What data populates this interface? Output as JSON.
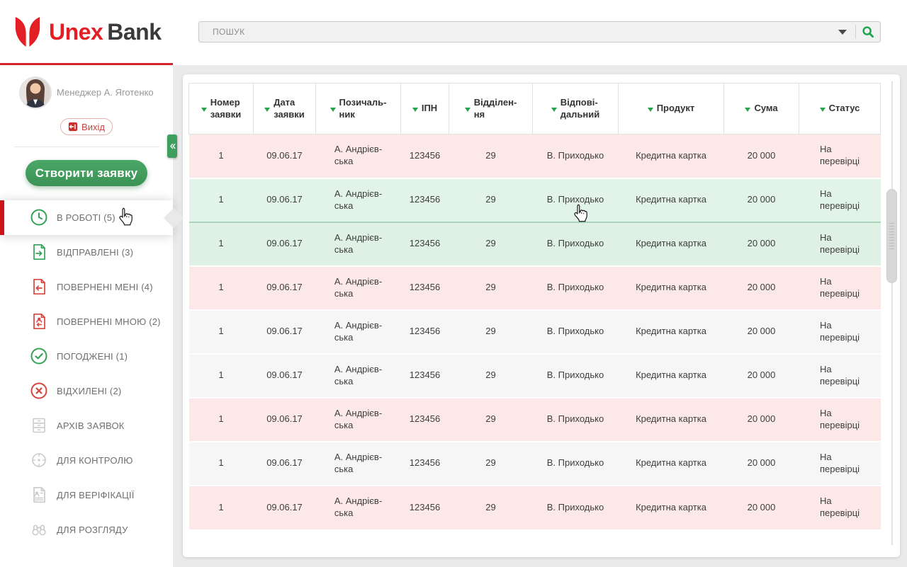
{
  "brand": {
    "name_primary": "Unex",
    "name_secondary": "Bank"
  },
  "search": {
    "placeholder": "ПОШУК"
  },
  "sidebar": {
    "user_name": "Менеджер А. Яготенко",
    "logout_label": "Вихід",
    "create_button_label": "Створити заявку",
    "menu": [
      {
        "key": "in-progress",
        "label": "В РОБОТІ (5)",
        "icon": "clock-icon",
        "tone": "green",
        "active": true
      },
      {
        "key": "sent",
        "label": "ВІДПРАВЛЕНІ (3)",
        "icon": "document-send-icon",
        "tone": "green",
        "active": false
      },
      {
        "key": "returned-to-me",
        "label": "ПОВЕРНЕНІ МЕНІ (4)",
        "icon": "document-return-icon",
        "tone": "red",
        "active": false
      },
      {
        "key": "returned-by-me",
        "label": "ПОВЕРНЕНІ МНОЮ (2)",
        "icon": "document-person-return-icon",
        "tone": "red",
        "active": false
      },
      {
        "key": "approved",
        "label": "ПОГОДЖЕНІ (1)",
        "icon": "check-circle-icon",
        "tone": "green",
        "active": false
      },
      {
        "key": "rejected",
        "label": "ВІДХИЛЕНІ (2)",
        "icon": "cross-circle-icon",
        "tone": "red",
        "active": false
      },
      {
        "key": "archive",
        "label": "АРХІВ ЗАЯВОК",
        "icon": "archive-icon",
        "tone": "gray",
        "active": false
      },
      {
        "key": "for-control",
        "label": "ДЛЯ КОНТРОЛЮ",
        "icon": "target-icon",
        "tone": "gray",
        "active": false
      },
      {
        "key": "for-verification",
        "label": "ДЛЯ ВЕРІФІКАЦІЇ",
        "icon": "document-person-icon",
        "tone": "gray",
        "active": false
      },
      {
        "key": "for-review",
        "label": "ДЛЯ РОЗГЛЯДУ",
        "icon": "binoculars-icon",
        "tone": "gray",
        "active": false
      }
    ]
  },
  "table": {
    "columns": [
      {
        "key": "application-number",
        "label": "Номер\nзаявки"
      },
      {
        "key": "application-date",
        "label": "Дата\nзаявки"
      },
      {
        "key": "borrower",
        "label": "Позичаль-\nник"
      },
      {
        "key": "ipn",
        "label": "ІПН"
      },
      {
        "key": "branch",
        "label": "Відділен-\nня"
      },
      {
        "key": "responsible",
        "label": "Відпові-\nдальний"
      },
      {
        "key": "product",
        "label": "Продукт"
      },
      {
        "key": "amount",
        "label": "Сума"
      },
      {
        "key": "status",
        "label": "Статус"
      }
    ],
    "rows": [
      {
        "tint": "pink",
        "cells": [
          "1",
          "09.06.17",
          "А. Андрієв-\nська",
          "123456",
          "29",
          "В. Приходько",
          "Кредитна картка",
          "20 000",
          "На\nперевірці"
        ]
      },
      {
        "tint": "green",
        "cells": [
          "1",
          "09.06.17",
          "А. Андрієв-\nська",
          "123456",
          "29",
          "В. Приходько",
          "Кредитна картка",
          "20 000",
          "На\nперевірці"
        ]
      },
      {
        "tint": "green-selected",
        "cells": [
          "1",
          "09.06.17",
          "А. Андрієв-\nська",
          "123456",
          "29",
          "В. Приходько",
          "Кредитна картка",
          "20 000",
          "На\nперевірці"
        ]
      },
      {
        "tint": "pink",
        "cells": [
          "1",
          "09.06.17",
          "А. Андрієв-\nська",
          "123456",
          "29",
          "В. Приходько",
          "Кредитна картка",
          "20 000",
          "На\nперевірці"
        ]
      },
      {
        "tint": "gray",
        "cells": [
          "1",
          "09.06.17",
          "А. Андрієв-\nська",
          "123456",
          "29",
          "В. Приходько",
          "Кредитна картка",
          "20 000",
          "На\nперевірці"
        ]
      },
      {
        "tint": "gray",
        "cells": [
          "1",
          "09.06.17",
          "А. Андрієв-\nська",
          "123456",
          "29",
          "В. Приходько",
          "Кредитна картка",
          "20 000",
          "На\nперевірці"
        ]
      },
      {
        "tint": "pink",
        "cells": [
          "1",
          "09.06.17",
          "А. Андрієв-\nська",
          "123456",
          "29",
          "В. Приходько",
          "Кредитна картка",
          "20 000",
          "На\nперевірці"
        ]
      },
      {
        "tint": "gray",
        "cells": [
          "1",
          "09.06.17",
          "А. Андрієв-\nська",
          "123456",
          "29",
          "В. Приходько",
          "Кредитна картка",
          "20 000",
          "На\nперевірці"
        ]
      },
      {
        "tint": "pink",
        "cells": [
          "1",
          "09.06.17",
          "А. Андрієв-\nська",
          "123456",
          "29",
          "В. Приходько",
          "Кредитна картка",
          "20 000",
          "На\nперевірці"
        ]
      }
    ]
  },
  "colors": {
    "accent_red": "#d8232a",
    "accent_green": "#3f9d5e",
    "row_pink": "#fce9e7",
    "row_green": "#e2f4e9",
    "row_green_selected": "#def1e4",
    "row_gray": "#f6f6f6"
  }
}
